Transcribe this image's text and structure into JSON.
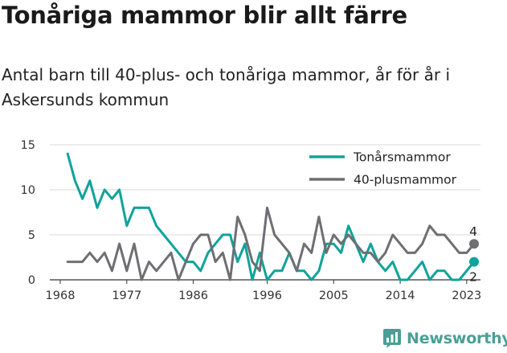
{
  "title": "Tonåriga mammor blir allt färre",
  "subtitle": "Antal barn till 40-plus- och tonåriga mammor, år för år i Askersunds kommun",
  "brand": {
    "name": "Newsworthy",
    "icon": "chart-bars-icon"
  },
  "chart_data": {
    "type": "line",
    "x": [
      1969,
      1970,
      1971,
      1972,
      1973,
      1974,
      1975,
      1976,
      1977,
      1978,
      1979,
      1980,
      1981,
      1982,
      1983,
      1984,
      1985,
      1986,
      1987,
      1988,
      1989,
      1990,
      1991,
      1992,
      1993,
      1994,
      1995,
      1996,
      1997,
      1998,
      1999,
      2000,
      2001,
      2002,
      2003,
      2004,
      2005,
      2006,
      2007,
      2008,
      2009,
      2010,
      2011,
      2012,
      2013,
      2014,
      2015,
      2016,
      2017,
      2018,
      2019,
      2020,
      2021,
      2022,
      2023,
      2024
    ],
    "series": [
      {
        "name": "Tonårsmammor",
        "color": "#0fa39a",
        "values": [
          14,
          11,
          9,
          11,
          8,
          10,
          9,
          10,
          6,
          8,
          8,
          8,
          6,
          5,
          4,
          3,
          2,
          2,
          1,
          3,
          4,
          5,
          5,
          2,
          4,
          0,
          3,
          0,
          1,
          1,
          3,
          1,
          1,
          0,
          1,
          4,
          4,
          3,
          6,
          4,
          2,
          4,
          2,
          1,
          2,
          0,
          0,
          1,
          2,
          0,
          1,
          1,
          0,
          0,
          1,
          2
        ]
      },
      {
        "name": "40-plusmammor",
        "color": "#6e6e73",
        "values": [
          2,
          2,
          2,
          3,
          2,
          3,
          1,
          4,
          1,
          4,
          0,
          2,
          1,
          2,
          3,
          0,
          2,
          4,
          5,
          5,
          2,
          3,
          0,
          7,
          5,
          2,
          1,
          8,
          5,
          4,
          3,
          1,
          4,
          3,
          7,
          3,
          5,
          4,
          5,
          4,
          3,
          3,
          2,
          3,
          5,
          4,
          3,
          3,
          4,
          6,
          5,
          5,
          4,
          3,
          3,
          4
        ]
      }
    ],
    "end_labels": [
      "4",
      "2"
    ],
    "xticks": [
      "1968",
      "1977",
      "1986",
      "1996",
      "2005",
      "2014",
      "2023"
    ],
    "yticks": [
      "0",
      "5",
      "10",
      "15"
    ],
    "xlim": [
      1968,
      2024
    ],
    "ylim": [
      0,
      15
    ],
    "grid": "horizontal",
    "legend_position": "top-right"
  }
}
